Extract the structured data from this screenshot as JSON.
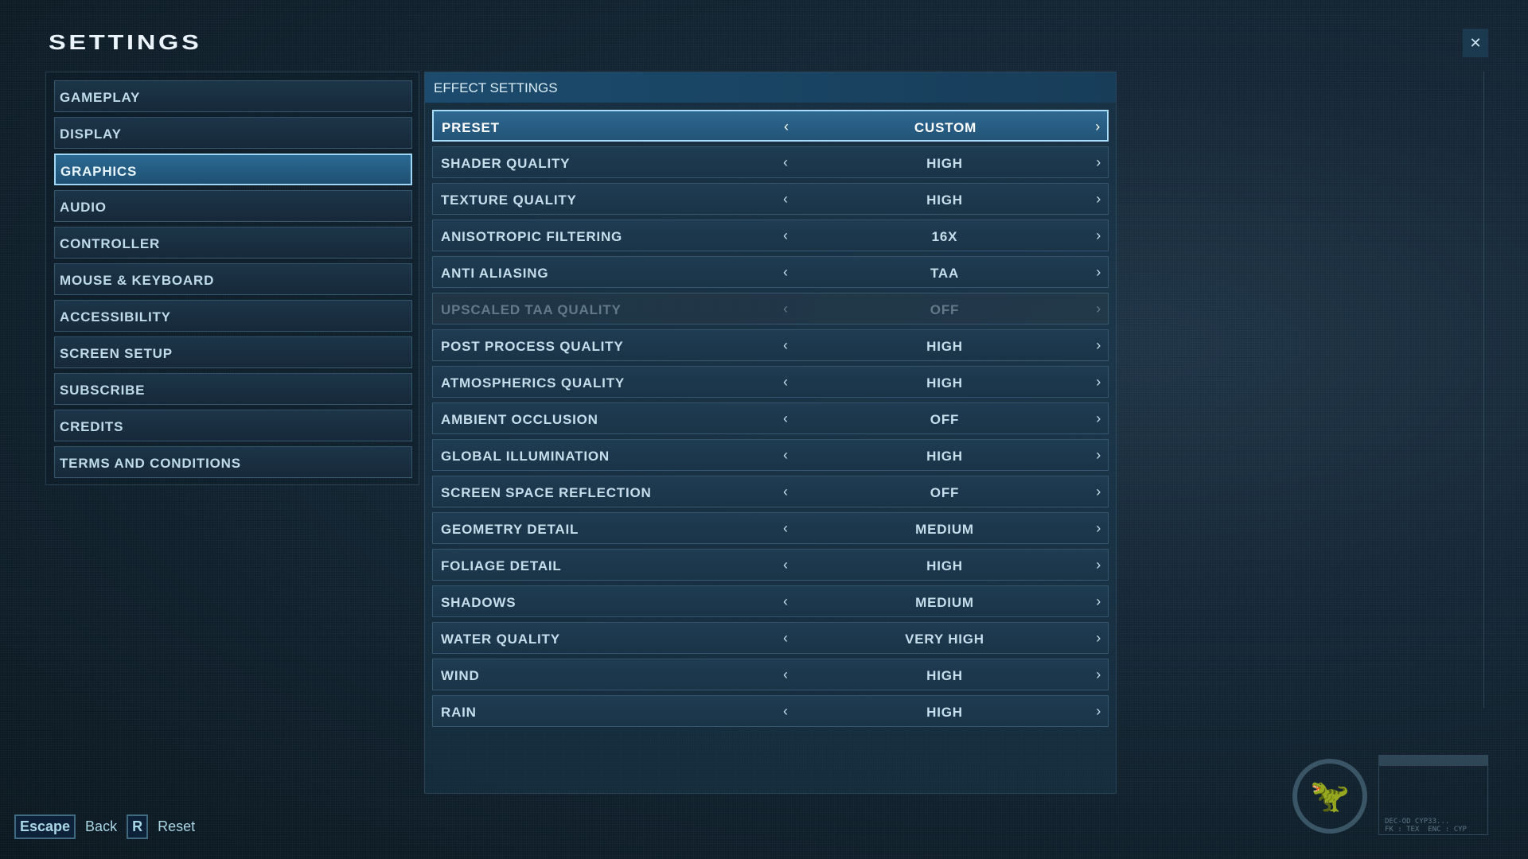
{
  "title": "SETTINGS",
  "nav": [
    {
      "label": "GAMEPLAY",
      "active": false
    },
    {
      "label": "DISPLAY",
      "active": false
    },
    {
      "label": "GRAPHICS",
      "active": true
    },
    {
      "label": "AUDIO",
      "active": false
    },
    {
      "label": "CONTROLLER",
      "active": false
    },
    {
      "label": "MOUSE & KEYBOARD",
      "active": false
    },
    {
      "label": "ACCESSIBILITY",
      "active": false
    },
    {
      "label": "SCREEN SETUP",
      "active": false
    },
    {
      "label": "SUBSCRIBE",
      "active": false
    },
    {
      "label": "CREDITS",
      "active": false
    },
    {
      "label": "TERMS AND CONDITIONS",
      "active": false
    }
  ],
  "section_title": "EFFECT SETTINGS",
  "settings": [
    {
      "label": "PRESET",
      "value": "CUSTOM",
      "state": "active"
    },
    {
      "label": "SHADER QUALITY",
      "value": "HIGH",
      "state": "normal"
    },
    {
      "label": "TEXTURE QUALITY",
      "value": "HIGH",
      "state": "normal"
    },
    {
      "label": "ANISOTROPIC FILTERING",
      "value": "16X",
      "state": "normal"
    },
    {
      "label": "ANTI ALIASING",
      "value": "TAA",
      "state": "normal"
    },
    {
      "label": "UPSCALED TAA QUALITY",
      "value": "OFF",
      "state": "disabled"
    },
    {
      "label": "POST PROCESS QUALITY",
      "value": "HIGH",
      "state": "normal"
    },
    {
      "label": "ATMOSPHERICS QUALITY",
      "value": "HIGH",
      "state": "normal"
    },
    {
      "label": "AMBIENT OCCLUSION",
      "value": "OFF",
      "state": "normal"
    },
    {
      "label": "GLOBAL ILLUMINATION",
      "value": "HIGH",
      "state": "normal"
    },
    {
      "label": "SCREEN SPACE REFLECTION",
      "value": "OFF",
      "state": "normal"
    },
    {
      "label": "GEOMETRY DETAIL",
      "value": "MEDIUM",
      "state": "normal"
    },
    {
      "label": "FOLIAGE DETAIL",
      "value": "HIGH",
      "state": "normal"
    },
    {
      "label": "SHADOWS",
      "value": "MEDIUM",
      "state": "normal"
    },
    {
      "label": "WATER QUALITY",
      "value": "VERY HIGH",
      "state": "normal"
    },
    {
      "label": "WIND",
      "value": "HIGH",
      "state": "normal"
    },
    {
      "label": "RAIN",
      "value": "HIGH",
      "state": "normal"
    }
  ],
  "arrows": {
    "left": "‹",
    "right": "›"
  },
  "hints": {
    "escape_key": "Escape",
    "back": "Back",
    "reset_key": "R",
    "reset": "Reset"
  },
  "close_icon": "✕",
  "deco_text": "DEC-OD CYP33...\nFK : TEX  ENC : CYP",
  "colors": {
    "accent": "#2b6a93",
    "highlight_border": "#9fd6f5"
  }
}
